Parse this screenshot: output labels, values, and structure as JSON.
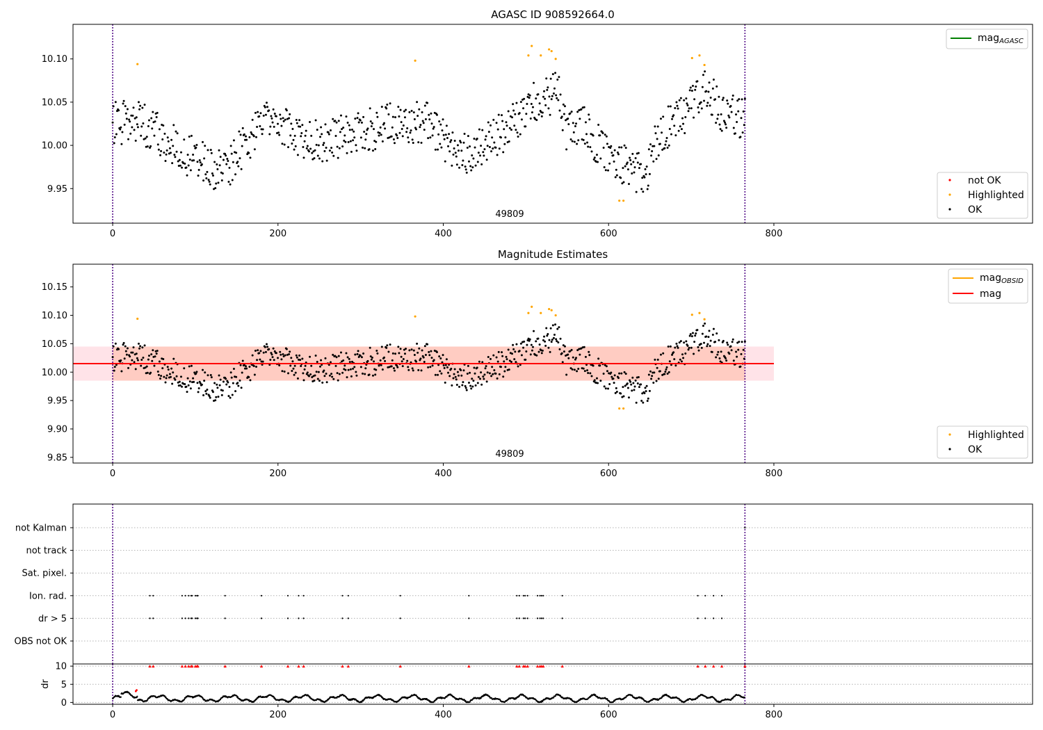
{
  "chart_data": [
    {
      "id": "top",
      "type": "scatter",
      "title": "AGASC ID 908592664.0",
      "xlabel": "",
      "ylabel": "",
      "xlim": [
        -48,
        1113
      ],
      "ylim": [
        9.91,
        10.14
      ],
      "xticks": [
        0,
        200,
        400,
        600,
        800
      ],
      "xtick_labels": [
        "0",
        "200",
        "400",
        "600",
        "800"
      ],
      "yticks": [
        9.95,
        10.0,
        10.05,
        10.1
      ],
      "ytick_labels": [
        "9.95",
        "10.00",
        "10.05",
        "10.10"
      ],
      "vlines": [
        0,
        765
      ],
      "annotation": {
        "text": "49809",
        "x": 382
      },
      "legend_lines": [
        {
          "label": "mag",
          "sub": "AGASC",
          "color": "#008000"
        }
      ],
      "legend_points": [
        {
          "label": "not OK",
          "color": "#ff0000"
        },
        {
          "label": "Highlighted",
          "color": "#ffa500"
        },
        {
          "label": "OK",
          "color": "#000000"
        }
      ],
      "series": [
        {
          "name": "OK",
          "color": "#000000",
          "model": "mag_ok"
        },
        {
          "name": "Highlighted",
          "color": "#ffa500",
          "points": [
            [
              30,
              10.094
            ],
            [
              366,
              10.098
            ],
            [
              503,
              10.104
            ],
            [
              507,
              10.115
            ],
            [
              518,
              10.104
            ],
            [
              528,
              10.111
            ],
            [
              531,
              10.109
            ],
            [
              536,
              10.1
            ],
            [
              613,
              9.936
            ],
            [
              618,
              9.936
            ],
            [
              701,
              10.101
            ],
            [
              710,
              10.104
            ],
            [
              716,
              10.093
            ]
          ]
        },
        {
          "name": "not OK",
          "color": "#ff0000",
          "points": []
        }
      ]
    },
    {
      "id": "middle",
      "type": "scatter",
      "title": "Magnitude Estimates",
      "xlabel": "",
      "ylabel": "",
      "xlim": [
        -48,
        1113
      ],
      "ylim": [
        9.84,
        10.19
      ],
      "xticks": [
        0,
        200,
        400,
        600,
        800
      ],
      "xtick_labels": [
        "0",
        "200",
        "400",
        "600",
        "800"
      ],
      "yticks": [
        9.85,
        9.9,
        9.95,
        10.0,
        10.05,
        10.1,
        10.15
      ],
      "ytick_labels": [
        "9.85",
        "9.90",
        "9.95",
        "10.00",
        "10.05",
        "10.10",
        "10.15"
      ],
      "vlines": [
        0,
        765
      ],
      "annotation": {
        "text": "49809",
        "x": 382
      },
      "bands": [
        {
          "x0": -48,
          "x1": 800,
          "y0": 9.985,
          "y1": 10.045,
          "color": "#ffc0cb",
          "opacity": 0.45
        },
        {
          "x0": 0,
          "x1": 765,
          "y0": 9.985,
          "y1": 10.045,
          "color": "#ffa07a",
          "opacity": 0.35
        }
      ],
      "hlines": [
        {
          "label": "mag",
          "sub": "",
          "y": 10.015,
          "x0": -48,
          "x1": 800,
          "color": "#ff0000"
        }
      ],
      "legend_lines": [
        {
          "label": "mag",
          "sub": "OBSID",
          "color": "#ffa500"
        },
        {
          "label": "mag",
          "sub": "",
          "color": "#ff0000"
        }
      ],
      "legend_points": [
        {
          "label": "Highlighted",
          "color": "#ffa500"
        },
        {
          "label": "OK",
          "color": "#000000"
        }
      ],
      "series": [
        {
          "name": "OK",
          "color": "#000000",
          "model": "mag_ok"
        },
        {
          "name": "Highlighted",
          "color": "#ffa500",
          "points": [
            [
              30,
              10.094
            ],
            [
              366,
              10.098
            ],
            [
              503,
              10.104
            ],
            [
              507,
              10.115
            ],
            [
              518,
              10.104
            ],
            [
              528,
              10.111
            ],
            [
              531,
              10.109
            ],
            [
              536,
              10.1
            ],
            [
              613,
              9.936
            ],
            [
              618,
              9.936
            ],
            [
              701,
              10.101
            ],
            [
              710,
              10.104
            ],
            [
              716,
              10.093
            ]
          ]
        }
      ]
    },
    {
      "id": "flags",
      "type": "scatter",
      "title": "",
      "xlabel": "",
      "ylabel": "",
      "xlim": [
        -48,
        1113
      ],
      "xticks": [],
      "categories": [
        "not Kalman",
        "not track",
        "Sat. pixel.",
        "Ion. rad.",
        "dr > 5",
        "OBS not OK"
      ],
      "vlines": [
        0,
        765
      ],
      "flagged_times": [
        45,
        49,
        84,
        88,
        92,
        95,
        96,
        100,
        102,
        103,
        136,
        180,
        212,
        225,
        231,
        278,
        285,
        348,
        431,
        489,
        492,
        497,
        499,
        502,
        514,
        517,
        519,
        521,
        544,
        708,
        717,
        727,
        737
      ],
      "rows_with_flags": [
        "Ion. rad.",
        "dr > 5"
      ],
      "extra_points": [
        {
          "category": "not Kalman",
          "x": 765
        }
      ]
    },
    {
      "id": "dr",
      "type": "scatter",
      "title": "",
      "xlabel": "",
      "ylabel": "dr",
      "xlim": [
        -48,
        1113
      ],
      "ylim": [
        -0.5,
        10.6
      ],
      "xticks": [
        0,
        200,
        400,
        600,
        800
      ],
      "xtick_labels": [
        "0",
        "200",
        "400",
        "600",
        "800"
      ],
      "yticks": [
        0,
        5,
        10
      ],
      "ytick_labels": [
        "0",
        "5",
        "10"
      ],
      "vlines": [
        0,
        765
      ],
      "hlines_dotted": [
        0,
        5,
        10
      ],
      "series": [
        {
          "name": "dr",
          "color": "#000000",
          "model": "dr"
        },
        {
          "name": "dr > 5 (clipped)",
          "color": "#ff0000",
          "marker": "triangle",
          "y": 10,
          "x_from": "flagged_times"
        },
        {
          "name": "highlight",
          "color": "#ff0000",
          "points": [
            [
              28,
              3.1
            ],
            [
              29,
              3.4
            ]
          ]
        }
      ]
    }
  ]
}
